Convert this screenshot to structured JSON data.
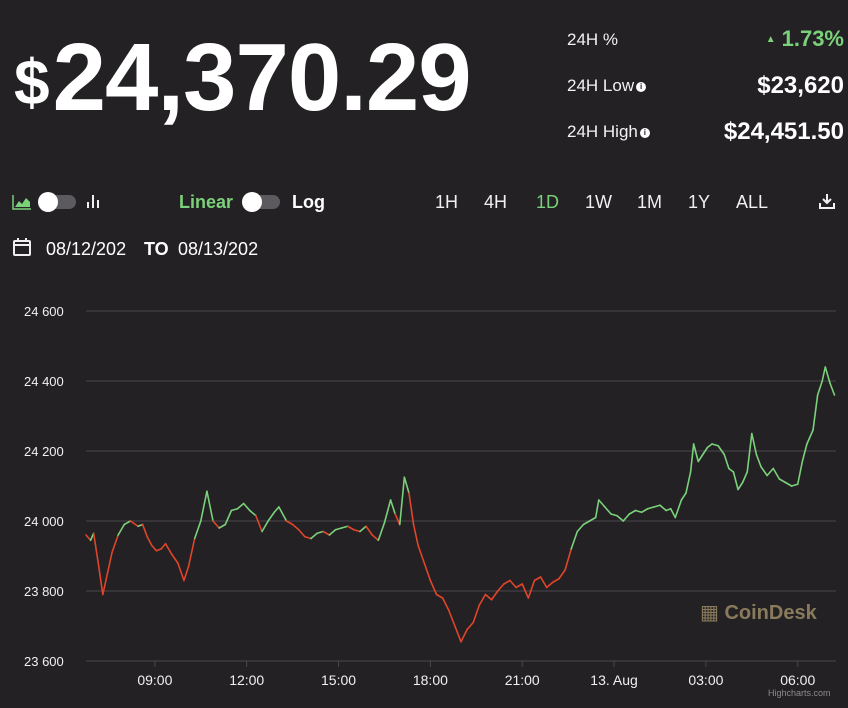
{
  "price": {
    "currency": "$",
    "value": "24,370.29"
  },
  "stats": [
    {
      "label": "24H %",
      "value": "1.73%",
      "trend": "up",
      "info": false
    },
    {
      "label": "24H Low",
      "value": "$23,620",
      "info": true
    },
    {
      "label": "24H High",
      "value": "$24,451.50",
      "info": true
    }
  ],
  "controls": {
    "scale_linear": "Linear",
    "scale_log": "Log",
    "timeframes": [
      "1H",
      "4H",
      "1D",
      "1W",
      "1M",
      "1Y",
      "ALL"
    ],
    "active_timeframe": "1D",
    "icons": [
      "area-chart-icon",
      "bar-chart-icon",
      "download-icon"
    ]
  },
  "dates": {
    "from": "08/12/202",
    "to_label": "TO",
    "to": "08/13/202"
  },
  "watermark": "CoinDesk",
  "credit": "Highcharts.com",
  "colors": {
    "up": "#7ad17a",
    "down": "#e0452a",
    "background": "#232124",
    "grid": "#4a484c"
  },
  "chart_data": {
    "type": "line",
    "x_unit": "hours",
    "x_tick_labels": [
      "09:00",
      "12:00",
      "15:00",
      "18:00",
      "21:00",
      "13. Aug",
      "03:00",
      "06:00"
    ],
    "x_tick_hours": [
      9,
      12,
      15,
      18,
      21,
      24,
      27,
      30
    ],
    "y_tick_labels": [
      "24 600",
      "24 400",
      "24 200",
      "24 000",
      "23 800",
      "23 600"
    ],
    "ylim": [
      23600,
      24600
    ],
    "series": [
      {
        "values": [
          [
            6.75,
            23960
          ],
          [
            6.9,
            23945
          ],
          [
            7.0,
            23965
          ],
          [
            7.15,
            23880
          ],
          [
            7.3,
            23790
          ],
          [
            7.45,
            23850
          ],
          [
            7.6,
            23910
          ],
          [
            7.8,
            23960
          ],
          [
            8.0,
            23990
          ],
          [
            8.2,
            24000
          ],
          [
            8.45,
            23985
          ],
          [
            8.6,
            23990
          ],
          [
            8.75,
            23955
          ],
          [
            8.9,
            23930
          ],
          [
            9.05,
            23915
          ],
          [
            9.2,
            23920
          ],
          [
            9.35,
            23935
          ],
          [
            9.55,
            23905
          ],
          [
            9.75,
            23880
          ],
          [
            9.95,
            23830
          ],
          [
            10.1,
            23870
          ],
          [
            10.3,
            23950
          ],
          [
            10.5,
            24000
          ],
          [
            10.7,
            24085
          ],
          [
            10.9,
            24000
          ],
          [
            11.1,
            23980
          ],
          [
            11.3,
            23990
          ],
          [
            11.5,
            24030
          ],
          [
            11.7,
            24035
          ],
          [
            11.9,
            24050
          ],
          [
            12.1,
            24030
          ],
          [
            12.3,
            24015
          ],
          [
            12.5,
            23970
          ],
          [
            12.7,
            24000
          ],
          [
            12.9,
            24025
          ],
          [
            13.05,
            24040
          ],
          [
            13.3,
            24000
          ],
          [
            13.5,
            23990
          ],
          [
            13.7,
            23975
          ],
          [
            13.9,
            23955
          ],
          [
            14.1,
            23950
          ],
          [
            14.3,
            23965
          ],
          [
            14.5,
            23970
          ],
          [
            14.7,
            23960
          ],
          [
            14.9,
            23975
          ],
          [
            15.1,
            23980
          ],
          [
            15.3,
            23985
          ],
          [
            15.5,
            23975
          ],
          [
            15.7,
            23970
          ],
          [
            15.9,
            23985
          ],
          [
            16.1,
            23960
          ],
          [
            16.3,
            23945
          ],
          [
            16.5,
            23995
          ],
          [
            16.7,
            24060
          ],
          [
            16.85,
            24020
          ],
          [
            17.0,
            23990
          ],
          [
            17.15,
            24125
          ],
          [
            17.3,
            24080
          ],
          [
            17.45,
            23990
          ],
          [
            17.6,
            23930
          ],
          [
            17.8,
            23880
          ],
          [
            18.0,
            23830
          ],
          [
            18.2,
            23790
          ],
          [
            18.4,
            23780
          ],
          [
            18.6,
            23745
          ],
          [
            18.8,
            23700
          ],
          [
            19.0,
            23655
          ],
          [
            19.2,
            23690
          ],
          [
            19.4,
            23710
          ],
          [
            19.6,
            23760
          ],
          [
            19.8,
            23790
          ],
          [
            20.0,
            23775
          ],
          [
            20.2,
            23800
          ],
          [
            20.4,
            23820
          ],
          [
            20.6,
            23830
          ],
          [
            20.8,
            23810
          ],
          [
            21.0,
            23820
          ],
          [
            21.2,
            23780
          ],
          [
            21.4,
            23830
          ],
          [
            21.6,
            23840
          ],
          [
            21.8,
            23810
          ],
          [
            22.0,
            23825
          ],
          [
            22.2,
            23835
          ],
          [
            22.4,
            23860
          ],
          [
            22.6,
            23920
          ],
          [
            22.8,
            23970
          ],
          [
            23.0,
            23990
          ],
          [
            23.2,
            24000
          ],
          [
            23.4,
            24010
          ],
          [
            23.5,
            24060
          ],
          [
            23.7,
            24040
          ],
          [
            23.9,
            24020
          ],
          [
            24.1,
            24015
          ],
          [
            24.3,
            24000
          ],
          [
            24.5,
            24020
          ],
          [
            24.7,
            24030
          ],
          [
            24.9,
            24025
          ],
          [
            25.1,
            24035
          ],
          [
            25.3,
            24040
          ],
          [
            25.5,
            24045
          ],
          [
            25.7,
            24030
          ],
          [
            25.85,
            24035
          ],
          [
            26.0,
            24010
          ],
          [
            26.2,
            24060
          ],
          [
            26.35,
            24080
          ],
          [
            26.5,
            24140
          ],
          [
            26.6,
            24220
          ],
          [
            26.75,
            24170
          ],
          [
            26.9,
            24190
          ],
          [
            27.05,
            24210
          ],
          [
            27.2,
            24220
          ],
          [
            27.4,
            24215
          ],
          [
            27.6,
            24190
          ],
          [
            27.75,
            24150
          ],
          [
            27.9,
            24140
          ],
          [
            28.05,
            24090
          ],
          [
            28.2,
            24110
          ],
          [
            28.35,
            24140
          ],
          [
            28.5,
            24250
          ],
          [
            28.65,
            24190
          ],
          [
            28.8,
            24155
          ],
          [
            29.0,
            24130
          ],
          [
            29.2,
            24150
          ],
          [
            29.4,
            24120
          ],
          [
            29.6,
            24110
          ],
          [
            29.8,
            24100
          ],
          [
            30.0,
            24105
          ],
          [
            30.15,
            24170
          ],
          [
            30.3,
            24220
          ],
          [
            30.5,
            24260
          ],
          [
            30.65,
            24360
          ],
          [
            30.8,
            24400
          ],
          [
            30.9,
            24440
          ],
          [
            31.05,
            24395
          ],
          [
            31.2,
            24360
          ]
        ]
      }
    ]
  }
}
